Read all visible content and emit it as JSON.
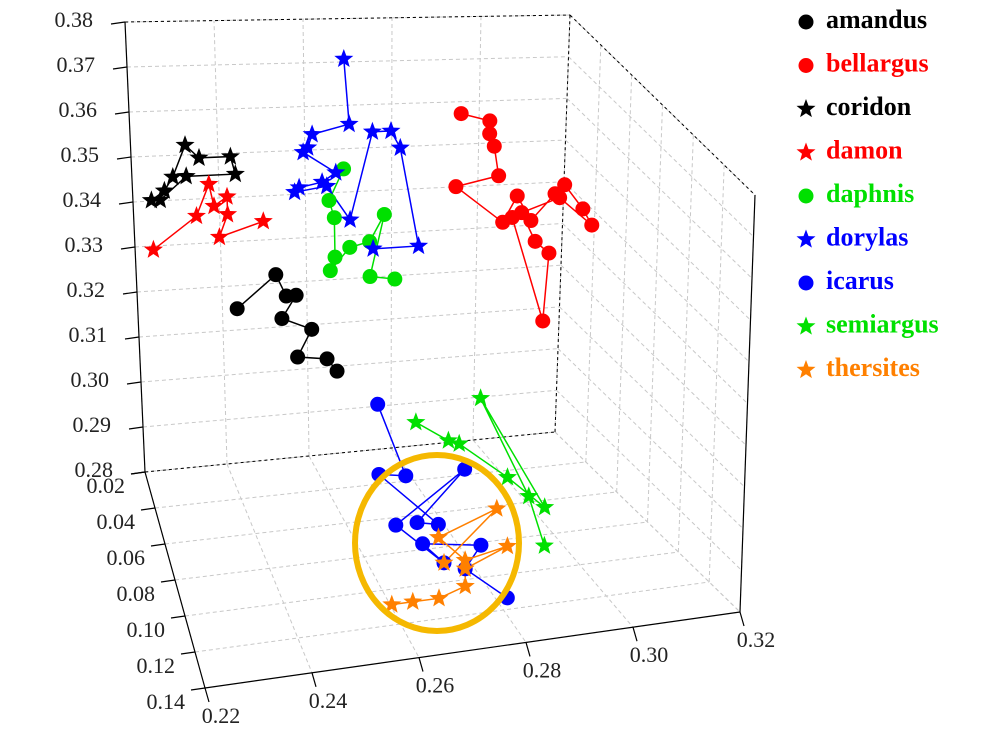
{
  "chart_data": {
    "type": "scatter3d",
    "xlim": [
      0.22,
      0.32
    ],
    "ylim": [
      0.02,
      0.14
    ],
    "zlim": [
      0.28,
      0.38
    ],
    "xticks": [
      0.22,
      0.24,
      0.26,
      0.28,
      {
        "value": 0.3,
        "label": "0.30"
      },
      0.32
    ],
    "yticks": [
      0.02,
      0.04,
      0.06,
      0.08,
      {
        "value": 0.1,
        "label": "0.10"
      },
      0.12,
      0.14
    ],
    "zticks": [
      0.28,
      0.29,
      {
        "value": 0.3,
        "label": "0.30"
      },
      0.31,
      0.32,
      0.33,
      0.34,
      0.35,
      0.36,
      0.37,
      0.38
    ],
    "grid": true,
    "legend": "upper right",
    "series": [
      {
        "name": "amandus",
        "color": "#000000",
        "marker": "circle",
        "x": [
          0.235,
          0.243,
          0.245,
          0.247,
          0.244,
          0.25,
          0.247,
          0.253,
          0.255
        ],
        "y": [
          0.08,
          0.08,
          0.08,
          0.08,
          0.08,
          0.08,
          0.08,
          0.08,
          0.08
        ],
        "z": [
          0.339,
          0.346,
          0.341,
          0.341,
          0.336,
          0.333,
          0.327,
          0.326,
          0.323
        ]
      },
      {
        "name": "bellargus",
        "color": "#ff0000",
        "marker": "circle",
        "x": [
          0.286,
          0.292,
          0.292,
          0.293,
          0.294,
          0.285,
          0.295,
          0.298,
          0.301,
          0.306,
          0.308,
          0.312,
          0.314,
          0.307,
          0.299,
          0.302,
          0.305,
          0.304,
          0.297
        ],
        "y": [
          0.056,
          0.056,
          0.056,
          0.056,
          0.056,
          0.056,
          0.056,
          0.056,
          0.056,
          0.056,
          0.056,
          0.056,
          0.056,
          0.056,
          0.056,
          0.056,
          0.056,
          0.056,
          0.056
        ],
        "z": [
          0.371,
          0.369,
          0.366,
          0.363,
          0.356,
          0.354,
          0.345,
          0.351,
          0.345,
          0.351,
          0.353,
          0.347,
          0.343,
          0.35,
          0.347,
          0.34,
          0.337,
          0.321,
          0.346
        ]
      },
      {
        "name": "coridon",
        "color": "#000000",
        "marker": "star",
        "x": [
          0.223,
          0.226,
          0.228,
          0.231,
          0.234,
          0.241,
          0.242,
          0.231,
          0.225
        ],
        "y": [
          0.032,
          0.032,
          0.032,
          0.032,
          0.032,
          0.032,
          0.032,
          0.032,
          0.032
        ],
        "z": [
          0.345,
          0.347,
          0.35,
          0.357,
          0.354,
          0.354,
          0.35,
          0.35,
          0.345
        ]
      },
      {
        "name": "damon",
        "color": "#ff0000",
        "marker": "star",
        "x": [
          0.223,
          0.233,
          0.236,
          0.237,
          0.24,
          0.24,
          0.238,
          0.248
        ],
        "y": [
          0.032,
          0.032,
          0.032,
          0.032,
          0.032,
          0.032,
          0.032,
          0.032
        ],
        "z": [
          0.334,
          0.341,
          0.348,
          0.343,
          0.345,
          0.341,
          0.336,
          0.339
        ]
      },
      {
        "name": "daphnis",
        "color": "#00e000",
        "marker": "circle",
        "x": [
          0.257,
          0.254,
          0.255,
          0.255,
          0.254,
          0.258,
          0.262,
          0.265,
          0.262,
          0.267
        ],
        "y": [
          0.08,
          0.08,
          0.08,
          0.08,
          0.08,
          0.08,
          0.08,
          0.08,
          0.08,
          0.08
        ],
        "z": [
          0.369,
          0.362,
          0.358,
          0.349,
          0.346,
          0.351,
          0.352,
          0.358,
          0.344,
          0.343
        ]
      },
      {
        "name": "dorylas",
        "color": "#0000ff",
        "marker": "star",
        "x": [
          0.264,
          0.265,
          0.257,
          0.256,
          0.255,
          0.262,
          0.259,
          0.254,
          0.253,
          0.26,
          0.265,
          0.27,
          0.274,
          0.276,
          0.28,
          0.27
        ],
        "y": [
          0.044,
          0.044,
          0.044,
          0.044,
          0.044,
          0.044,
          0.044,
          0.044,
          0.044,
          0.044,
          0.044,
          0.044,
          0.044,
          0.044,
          0.044,
          0.044
        ],
        "z": [
          0.38,
          0.365,
          0.363,
          0.36,
          0.359,
          0.354,
          0.352,
          0.351,
          0.35,
          0.351,
          0.343,
          0.363,
          0.363,
          0.359,
          0.336,
          0.336
        ]
      },
      {
        "name": "icarus",
        "color": "#0000ff",
        "marker": "circle",
        "x": [
          0.255,
          0.26,
          0.255,
          0.266,
          0.262,
          0.271,
          0.258,
          0.267,
          0.263,
          0.274,
          0.271,
          0.279
        ],
        "y": [
          0.128,
          0.128,
          0.128,
          0.128,
          0.128,
          0.128,
          0.128,
          0.128,
          0.128,
          0.128,
          0.128,
          0.128
        ],
        "z": [
          0.334,
          0.317,
          0.318,
          0.305,
          0.306,
          0.317,
          0.306,
          0.296,
          0.301,
          0.299,
          0.294,
          0.286
        ]
      },
      {
        "name": "semiargus",
        "color": "#00e000",
        "marker": "star",
        "x": [
          0.262,
          0.268,
          0.27,
          0.279,
          0.286,
          0.274,
          0.283,
          0.286
        ],
        "y": [
          0.128,
          0.128,
          0.128,
          0.128,
          0.128,
          0.128,
          0.128,
          0.128
        ],
        "z": [
          0.329,
          0.324,
          0.323,
          0.314,
          0.306,
          0.333,
          0.309,
          0.297
        ]
      },
      {
        "name": "thersites",
        "color": "#ff8000",
        "marker": "star",
        "x": [
          0.257,
          0.261,
          0.266,
          0.271,
          0.271,
          0.279,
          0.271,
          0.266,
          0.277,
          0.267
        ],
        "y": [
          0.128,
          0.128,
          0.128,
          0.128,
          0.128,
          0.128,
          0.128,
          0.128,
          0.128,
          0.128
        ],
        "z": [
          0.288,
          0.288,
          0.288,
          0.29,
          0.294,
          0.298,
          0.296,
          0.302,
          0.307,
          0.296
        ]
      }
    ]
  }
}
